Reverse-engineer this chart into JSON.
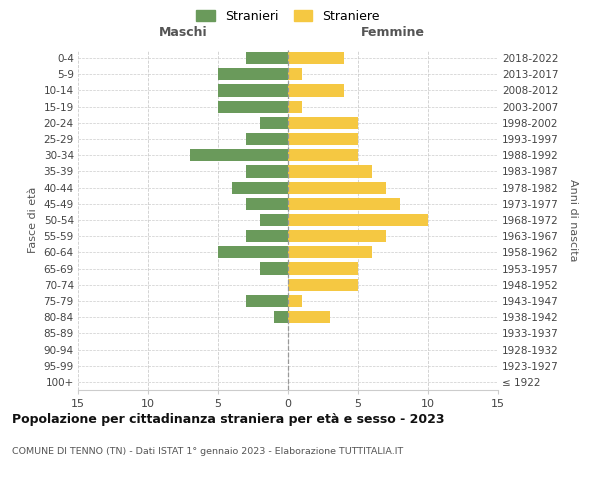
{
  "age_groups": [
    "100+",
    "95-99",
    "90-94",
    "85-89",
    "80-84",
    "75-79",
    "70-74",
    "65-69",
    "60-64",
    "55-59",
    "50-54",
    "45-49",
    "40-44",
    "35-39",
    "30-34",
    "25-29",
    "20-24",
    "15-19",
    "10-14",
    "5-9",
    "0-4"
  ],
  "birth_years": [
    "≤ 1922",
    "1923-1927",
    "1928-1932",
    "1933-1937",
    "1938-1942",
    "1943-1947",
    "1948-1952",
    "1953-1957",
    "1958-1962",
    "1963-1967",
    "1968-1972",
    "1973-1977",
    "1978-1982",
    "1983-1987",
    "1988-1992",
    "1993-1997",
    "1998-2002",
    "2003-2007",
    "2008-2012",
    "2013-2017",
    "2018-2022"
  ],
  "maschi": [
    0,
    0,
    0,
    0,
    1,
    3,
    0,
    2,
    5,
    3,
    2,
    3,
    4,
    3,
    7,
    3,
    2,
    5,
    5,
    5,
    3
  ],
  "femmine": [
    0,
    0,
    0,
    0,
    3,
    1,
    5,
    5,
    6,
    7,
    10,
    8,
    7,
    6,
    5,
    5,
    5,
    1,
    4,
    1,
    4
  ],
  "maschi_color": "#6a9a5b",
  "femmine_color": "#f5c842",
  "title": "Popolazione per cittadinanza straniera per età e sesso - 2023",
  "subtitle": "COMUNE DI TENNO (TN) - Dati ISTAT 1° gennaio 2023 - Elaborazione TUTTITALIA.IT",
  "xlabel_left": "Maschi",
  "xlabel_right": "Femmine",
  "ylabel_left": "Fasce di età",
  "ylabel_right": "Anni di nascita",
  "legend_stranieri": "Stranieri",
  "legend_straniere": "Straniere",
  "xlim": 15,
  "background_color": "#ffffff",
  "grid_color": "#cccccc"
}
